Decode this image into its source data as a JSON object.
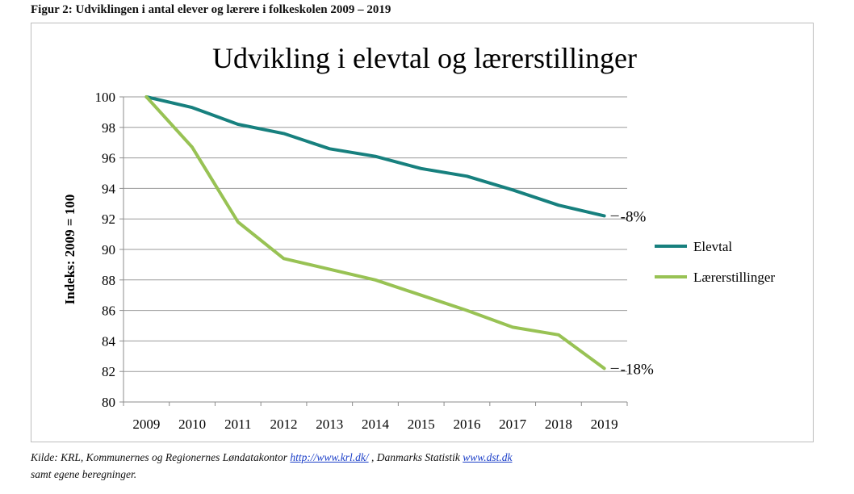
{
  "figure_caption": "Figur 2: Udviklingen i antal elever og lærere i folkeskolen 2009 – 2019",
  "colors": {
    "elevtal": "#17807e",
    "laererstillinger": "#98c254",
    "grid": "#9a9a9a",
    "axis": "#8c8c8c"
  },
  "chart_data": {
    "type": "line",
    "title": "Udvikling i elevtal og lærerstillinger",
    "xlabel": "",
    "ylabel": "Indeks: 2009 = 100",
    "ylim": [
      80,
      100
    ],
    "y_ticks": [
      100,
      98,
      96,
      94,
      92,
      90,
      88,
      86,
      84,
      82,
      80
    ],
    "x": [
      "2009",
      "2010",
      "2011",
      "2012",
      "2013",
      "2014",
      "2015",
      "2016",
      "2017",
      "2018",
      "2019"
    ],
    "grid": true,
    "legend_position": "right",
    "series": [
      {
        "name": "Elevtal",
        "values": [
          100,
          99.3,
          98.2,
          97.6,
          96.6,
          96.1,
          95.3,
          94.8,
          93.9,
          92.9,
          92.2
        ],
        "end_label": "-8%"
      },
      {
        "name": "Lærerstillinger",
        "values": [
          100,
          96.7,
          91.8,
          89.4,
          88.7,
          88.0,
          87.0,
          86.0,
          84.9,
          84.4,
          82.2
        ],
        "end_label": "-18%"
      }
    ]
  },
  "source": {
    "line1_prefix": "Kilde: KRL, Kommunernes og Regionernes Løndatakontor ",
    "link1": "http://www.krl.dk/",
    "line1_middle": " , Danmarks Statistik ",
    "link2": "www.dst.dk",
    "line2": "samt egene beregninger."
  }
}
